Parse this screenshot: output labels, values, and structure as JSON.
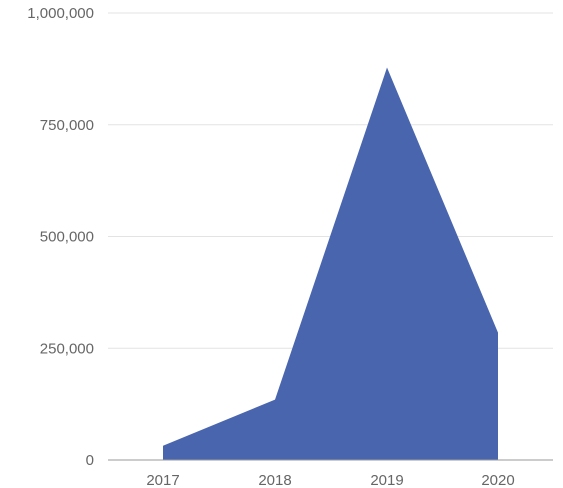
{
  "chart_data": {
    "type": "area",
    "title": "",
    "xlabel": "",
    "ylabel": "",
    "categories": [
      "2017",
      "2018",
      "2019",
      "2020"
    ],
    "series": [
      {
        "values": [
          32000,
          135000,
          878000,
          285000
        ]
      }
    ],
    "ylim": [
      0,
      1000000
    ],
    "yticks": [
      0,
      250000,
      500000,
      750000,
      1000000
    ],
    "ytick_labels": [
      "0",
      "250,000",
      "500,000",
      "750,000",
      "1,000,000"
    ],
    "grid": true,
    "legend": "none",
    "colors": {
      "area_fill": "#4965ae",
      "grid": "#e3e3e3",
      "baseline": "#9a9a9a",
      "tick_text": "#666666"
    }
  }
}
